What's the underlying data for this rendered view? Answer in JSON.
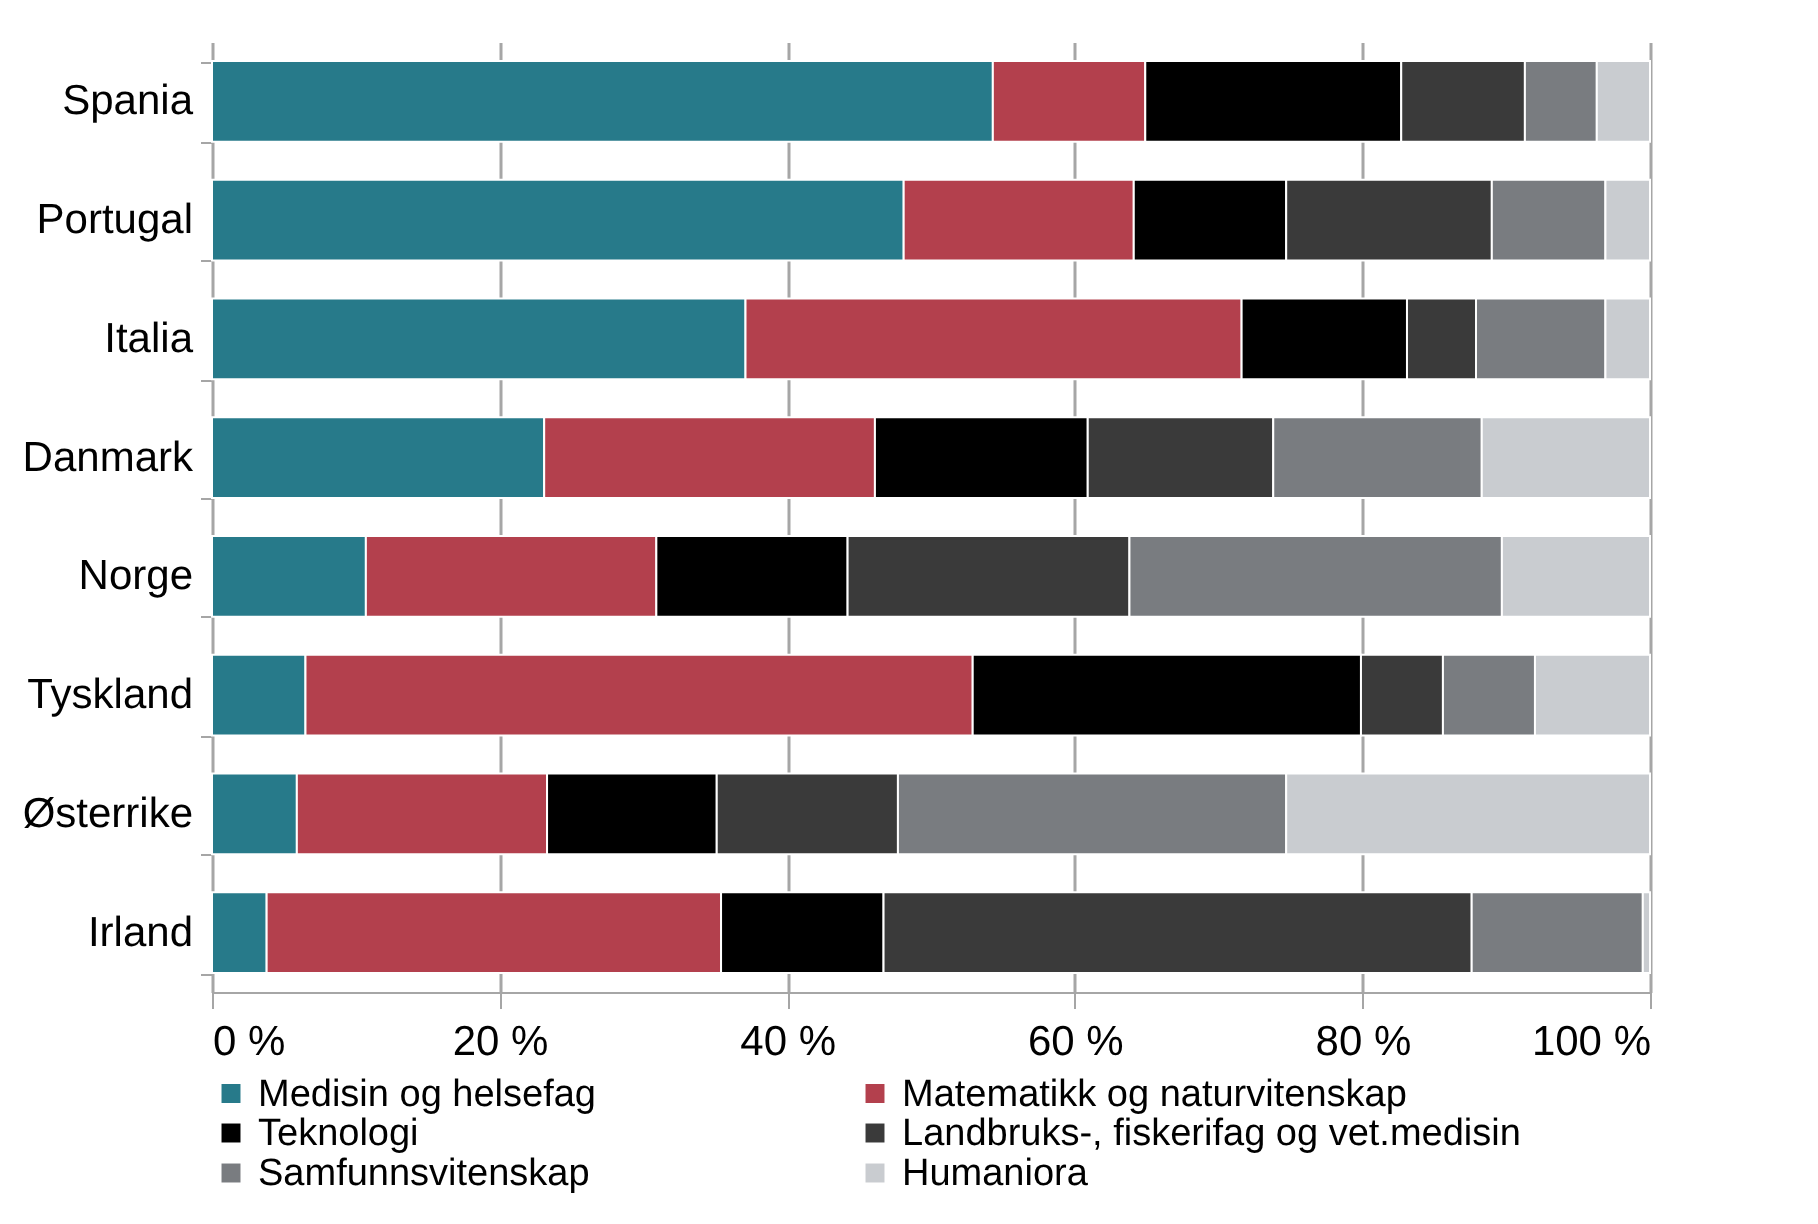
{
  "chart_data": {
    "type": "bar",
    "orientation": "horizontal",
    "stacked": true,
    "categories": [
      "Spania",
      "Portugal",
      "Italia",
      "Danmark",
      "Norge",
      "Tyskland",
      "Østerrike",
      "Irland"
    ],
    "series": [
      {
        "name": "Medisin og helsefag",
        "color": "#277a8a",
        "values": [
          54.3,
          48.1,
          37.1,
          23.1,
          10.7,
          6.5,
          5.9,
          3.8
        ]
      },
      {
        "name": "Matematikk og naturvitenskap",
        "color": "#b3404d",
        "values": [
          10.6,
          16.0,
          34.5,
          23.0,
          20.2,
          46.4,
          17.4,
          31.6
        ]
      },
      {
        "name": "Teknologi",
        "color": "#000000",
        "values": [
          17.8,
          10.6,
          11.5,
          14.8,
          13.3,
          27.0,
          11.8,
          11.3
        ]
      },
      {
        "name": "Landbruks-, fiskerifag og vet.medisin",
        "color": "#3a3a3a",
        "values": [
          8.6,
          14.3,
          4.8,
          12.9,
          19.6,
          5.7,
          12.6,
          40.9
        ]
      },
      {
        "name": "Samfunnsvitenskap",
        "color": "#797c80",
        "values": [
          5.0,
          7.9,
          9.0,
          14.5,
          25.9,
          6.4,
          27.0,
          11.9
        ]
      },
      {
        "name": "Humaniora",
        "color": "#c9ccd0",
        "values": [
          3.7,
          3.1,
          3.1,
          11.7,
          10.3,
          8.0,
          25.3,
          0.5
        ]
      }
    ],
    "xlim": [
      0,
      100
    ],
    "xticks": [
      {
        "value": 0,
        "label": "0 %"
      },
      {
        "value": 20,
        "label": "20 %"
      },
      {
        "value": 40,
        "label": "40 %"
      },
      {
        "value": 60,
        "label": "60 %"
      },
      {
        "value": 80,
        "label": "80 %"
      },
      {
        "value": 100,
        "label": "100 %"
      }
    ],
    "grid": "x",
    "legend": "bottom"
  }
}
